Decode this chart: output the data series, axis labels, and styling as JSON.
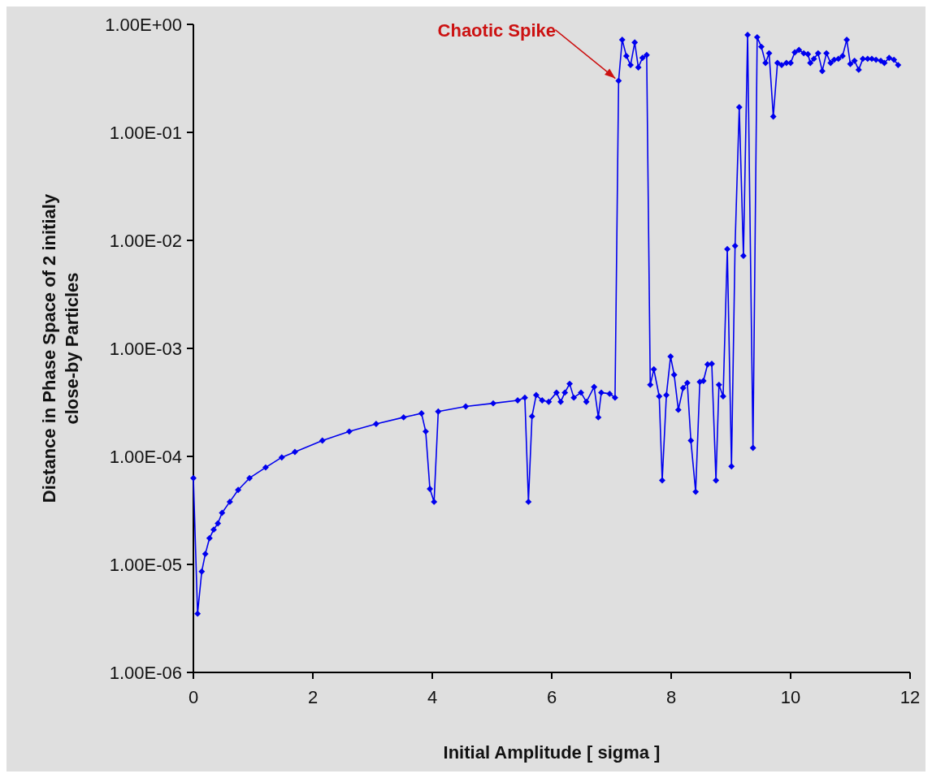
{
  "chart_data": {
    "type": "line",
    "xlabel": "Initial Amplitude [ sigma ]",
    "ylabel": "Distance in Phase Space of 2 initialy\nclose-by Particles",
    "log": "y",
    "marker": "diamond",
    "line_style": "solid",
    "grid": false,
    "xlim": [
      0,
      12
    ],
    "xticks": [
      0,
      2,
      4,
      6,
      8,
      10,
      12
    ],
    "ylim": [
      1e-06,
      1
    ],
    "yticks": [
      {
        "value": 1e-06,
        "label": "1.00E-06"
      },
      {
        "value": 1e-05,
        "label": "1.00E-05"
      },
      {
        "value": 0.0001,
        "label": "1.00E-04"
      },
      {
        "value": 0.001,
        "label": "1.00E-03"
      },
      {
        "value": 0.01,
        "label": "1.00E-02"
      },
      {
        "value": 0.1,
        "label": "1.00E-01"
      },
      {
        "value": 1,
        "label": "1.00E+00"
      }
    ],
    "annotations": [
      {
        "text": "Chaotic Spike",
        "x": 7.12,
        "y": 0.3
      }
    ],
    "series": [
      {
        "color": "#0000ee",
        "x": [
          0,
          0.07,
          0.14,
          0.2,
          0.27,
          0.34,
          0.41,
          0.48,
          0.61,
          0.75,
          0.94,
          1.21,
          1.48,
          1.7,
          2.16,
          2.61,
          3.06,
          3.52,
          3.82,
          3.89,
          3.96,
          4.03,
          4.1,
          4.56,
          5.02,
          5.43,
          5.55,
          5.61,
          5.67,
          5.74,
          5.84,
          5.95,
          6.08,
          6.15,
          6.22,
          6.3,
          6.37,
          6.49,
          6.58,
          6.71,
          6.78,
          6.83,
          6.97,
          7.06,
          7.12,
          7.18,
          7.25,
          7.32,
          7.39,
          7.45,
          7.52,
          7.59,
          7.65,
          7.71,
          7.8,
          7.85,
          7.92,
          7.99,
          8.05,
          8.12,
          8.2,
          8.27,
          8.33,
          8.41,
          8.48,
          8.54,
          8.61,
          8.68,
          8.75,
          8.8,
          8.87,
          8.94,
          9.01,
          9.07,
          9.14,
          9.21,
          9.28,
          9.37,
          9.44,
          9.51,
          9.58,
          9.64,
          9.71,
          9.78,
          9.85,
          9.93,
          10.0,
          10.07,
          10.14,
          10.22,
          10.29,
          10.33,
          10.39,
          10.46,
          10.53,
          10.6,
          10.67,
          10.73,
          10.8,
          10.87,
          10.94,
          11.0,
          11.07,
          11.14,
          11.21,
          11.29,
          11.36,
          11.43,
          11.51,
          11.57,
          11.65,
          11.73,
          11.8
        ],
        "values": [
          6.3e-05,
          3.5e-06,
          8.6e-06,
          1.25e-05,
          1.75e-05,
          2.1e-05,
          2.4e-05,
          3e-05,
          3.8e-05,
          4.9e-05,
          6.3e-05,
          7.9e-05,
          9.8e-05,
          0.00011,
          0.00014,
          0.00017,
          0.0002,
          0.00023,
          0.00025,
          0.00017,
          5e-05,
          3.8e-05,
          0.00026,
          0.00029,
          0.00031,
          0.00033,
          0.00035,
          3.8e-05,
          0.000235,
          0.00037,
          0.00033,
          0.00032,
          0.00039,
          0.00032,
          0.00039,
          0.00047,
          0.00035,
          0.00039,
          0.00032,
          0.00044,
          0.00023,
          0.00039,
          0.00038,
          0.00035,
          0.3,
          0.72,
          0.51,
          0.42,
          0.68,
          0.4,
          0.49,
          0.52,
          0.00046,
          0.00064,
          0.00036,
          6e-05,
          0.00037,
          0.00084,
          0.00057,
          0.00027,
          0.00043,
          0.00048,
          0.00014,
          4.7e-05,
          0.00049,
          0.0005,
          0.00071,
          0.00072,
          6e-05,
          0.00046,
          0.00036,
          0.0083,
          8.1e-05,
          0.0089,
          0.171,
          0.0072,
          0.8,
          0.00012,
          0.76,
          0.62,
          0.44,
          0.54,
          0.14,
          0.44,
          0.42,
          0.44,
          0.44,
          0.55,
          0.58,
          0.54,
          0.53,
          0.44,
          0.48,
          0.54,
          0.37,
          0.54,
          0.44,
          0.47,
          0.48,
          0.51,
          0.72,
          0.43,
          0.46,
          0.38,
          0.48,
          0.48,
          0.48,
          0.47,
          0.46,
          0.44,
          0.49,
          0.47,
          0.42
        ]
      }
    ]
  }
}
